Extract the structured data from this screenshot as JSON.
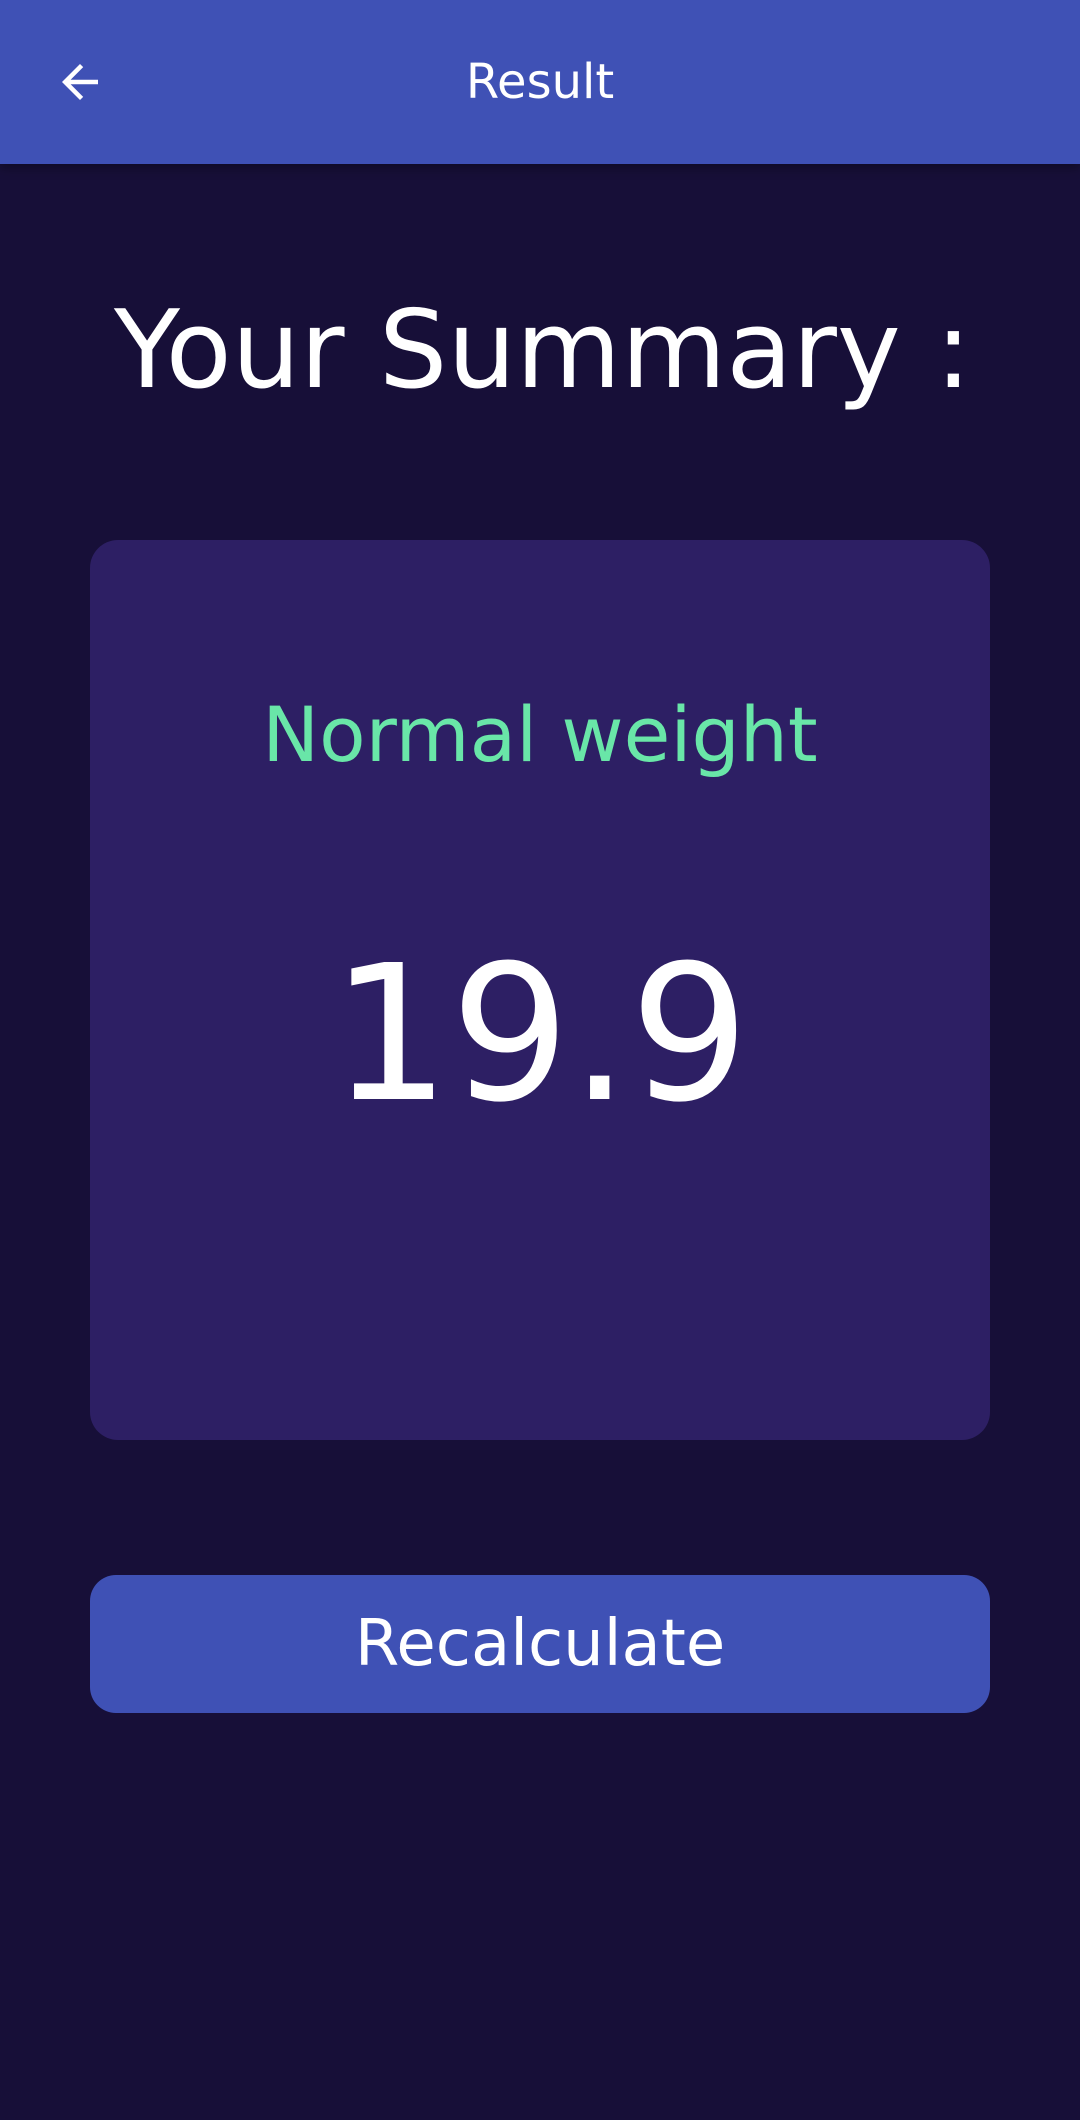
{
  "app_bar": {
    "title": "Result",
    "back_icon": "arrow-back-icon"
  },
  "summary": {
    "heading": "Your Summary :"
  },
  "result_card": {
    "category": "Normal weight",
    "bmi_value": "19.9"
  },
  "actions": {
    "recalculate_label": "Recalculate"
  },
  "colors": {
    "background": "#170f38",
    "app_bar": "#3f51b5",
    "card": "#2d1f64",
    "category_text": "#69e6a8",
    "button": "#3f51b5"
  }
}
